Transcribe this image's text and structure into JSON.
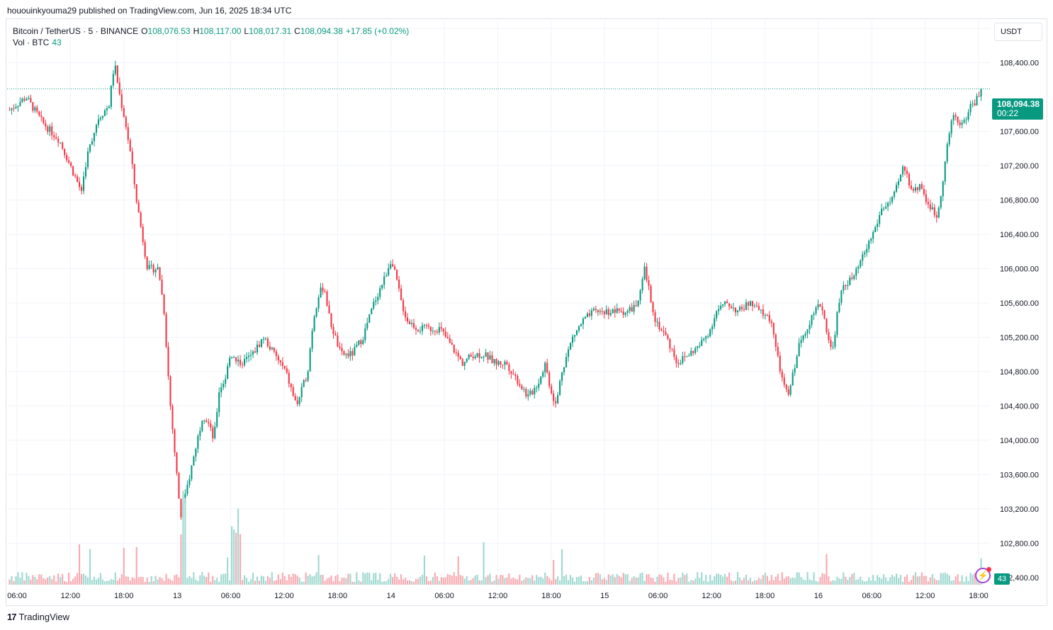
{
  "header": {
    "published": "hououinkyouma29 published on TradingView.com, Jun 16, 2025 18:34 UTC"
  },
  "legend": {
    "symbol": "Bitcoin / TetherUS · 5 · BINANCE",
    "o_label": "O",
    "o_value": "108,076.53",
    "h_label": "H",
    "h_value": "108,117.00",
    "l_label": "L",
    "l_value": "108,017.31",
    "c_label": "C",
    "c_value": "108,094.38",
    "change": "+17.85 (+0.02%)",
    "vol_label": "Vol · BTC",
    "vol_value": "43"
  },
  "currency": "USDT",
  "last_price": {
    "price": "108,094.38",
    "countdown": "00:22"
  },
  "volume_badge": "43",
  "brand": {
    "logo": "17",
    "name": "TradingView"
  },
  "colors": {
    "up": "#089981",
    "down": "#f23645",
    "grid": "#f0f3fa",
    "vol_up": "#9ed8d0",
    "vol_down": "#f7a9af"
  },
  "chart_data": {
    "type": "candlestick",
    "title": "Bitcoin / TetherUS · 5 · BINANCE",
    "y_axis_ticks": [
      "108,800.00",
      "108,400.00",
      "107,600.00",
      "107,200.00",
      "106,800.00",
      "106,400.00",
      "106,000.00",
      "105,600.00",
      "105,200.00",
      "104,800.00",
      "104,400.00",
      "104,000.00",
      "103,600.00",
      "103,200.00",
      "102,800.00",
      "102,400.00"
    ],
    "x_axis_ticks": [
      "06:00",
      "12:00",
      "18:00",
      "13",
      "06:00",
      "12:00",
      "18:00",
      "14",
      "06:00",
      "12:00",
      "18:00",
      "15",
      "06:00",
      "12:00",
      "18:00",
      "16",
      "06:00",
      "12:00",
      "18:00"
    ],
    "ylim": [
      102300,
      108900
    ],
    "last_close": 108094.38,
    "price_path": [
      [
        0,
        107850
      ],
      [
        3,
        108000
      ],
      [
        6,
        107700
      ],
      [
        9,
        107500
      ],
      [
        11,
        107200
      ],
      [
        13,
        106900
      ],
      [
        14,
        107300
      ],
      [
        16,
        107750
      ],
      [
        18,
        107900
      ],
      [
        19,
        108400
      ],
      [
        20,
        108000
      ],
      [
        21,
        107700
      ],
      [
        22,
        107300
      ],
      [
        23,
        106800
      ],
      [
        24,
        106400
      ],
      [
        25,
        106000
      ],
      [
        27,
        106000
      ],
      [
        28,
        105500
      ],
      [
        29,
        104500
      ],
      [
        30,
        103800
      ],
      [
        31,
        103100
      ],
      [
        32,
        103400
      ],
      [
        33,
        103700
      ],
      [
        34,
        104000
      ],
      [
        35,
        104300
      ],
      [
        36,
        104200
      ],
      [
        37,
        104000
      ],
      [
        38,
        104600
      ],
      [
        39,
        104700
      ],
      [
        40,
        105000
      ],
      [
        42,
        104900
      ],
      [
        44,
        105000
      ],
      [
        46,
        105200
      ],
      [
        48,
        105000
      ],
      [
        50,
        104800
      ],
      [
        52,
        104400
      ],
      [
        54,
        104800
      ],
      [
        55,
        105400
      ],
      [
        56,
        105700
      ],
      [
        57,
        105800
      ],
      [
        58,
        105400
      ],
      [
        60,
        105000
      ],
      [
        62,
        105000
      ],
      [
        64,
        105200
      ],
      [
        66,
        105600
      ],
      [
        68,
        105900
      ],
      [
        69,
        106100
      ],
      [
        70,
        105900
      ],
      [
        71,
        105600
      ],
      [
        72,
        105400
      ],
      [
        74,
        105300
      ],
      [
        76,
        105300
      ],
      [
        78,
        105300
      ],
      [
        80,
        105100
      ],
      [
        82,
        104900
      ],
      [
        84,
        105000
      ],
      [
        86,
        105000
      ],
      [
        88,
        104900
      ],
      [
        90,
        104900
      ],
      [
        92,
        104700
      ],
      [
        94,
        104500
      ],
      [
        96,
        104700
      ],
      [
        97,
        104900
      ],
      [
        98,
        104600
      ],
      [
        99,
        104400
      ],
      [
        100,
        104800
      ],
      [
        102,
        105200
      ],
      [
        104,
        105400
      ],
      [
        106,
        105500
      ],
      [
        108,
        105500
      ],
      [
        110,
        105500
      ],
      [
        112,
        105500
      ],
      [
        114,
        105600
      ],
      [
        115,
        106000
      ],
      [
        116,
        105700
      ],
      [
        117,
        105400
      ],
      [
        119,
        105200
      ],
      [
        121,
        104900
      ],
      [
        123,
        105000
      ],
      [
        125,
        105100
      ],
      [
        127,
        105300
      ],
      [
        128,
        105500
      ],
      [
        130,
        105600
      ],
      [
        132,
        105500
      ],
      [
        134,
        105600
      ],
      [
        136,
        105500
      ],
      [
        138,
        105400
      ],
      [
        139,
        105000
      ],
      [
        140,
        104700
      ],
      [
        141,
        104500
      ],
      [
        142,
        104800
      ],
      [
        143,
        105100
      ],
      [
        145,
        105400
      ],
      [
        147,
        105600
      ],
      [
        148,
        105300
      ],
      [
        149,
        105000
      ],
      [
        150,
        105500
      ],
      [
        151,
        105800
      ],
      [
        153,
        105900
      ],
      [
        155,
        106200
      ],
      [
        157,
        106500
      ],
      [
        158,
        106700
      ],
      [
        160,
        106800
      ],
      [
        161,
        107000
      ],
      [
        162,
        107200
      ],
      [
        163,
        107000
      ],
      [
        164,
        106900
      ],
      [
        165,
        107000
      ],
      [
        166,
        106800
      ],
      [
        167,
        106700
      ],
      [
        168,
        106600
      ],
      [
        169,
        107000
      ],
      [
        170,
        107500
      ],
      [
        171,
        107800
      ],
      [
        172,
        107700
      ],
      [
        173,
        107700
      ],
      [
        174,
        107900
      ],
      [
        175,
        107950
      ],
      [
        176,
        108094
      ]
    ]
  }
}
